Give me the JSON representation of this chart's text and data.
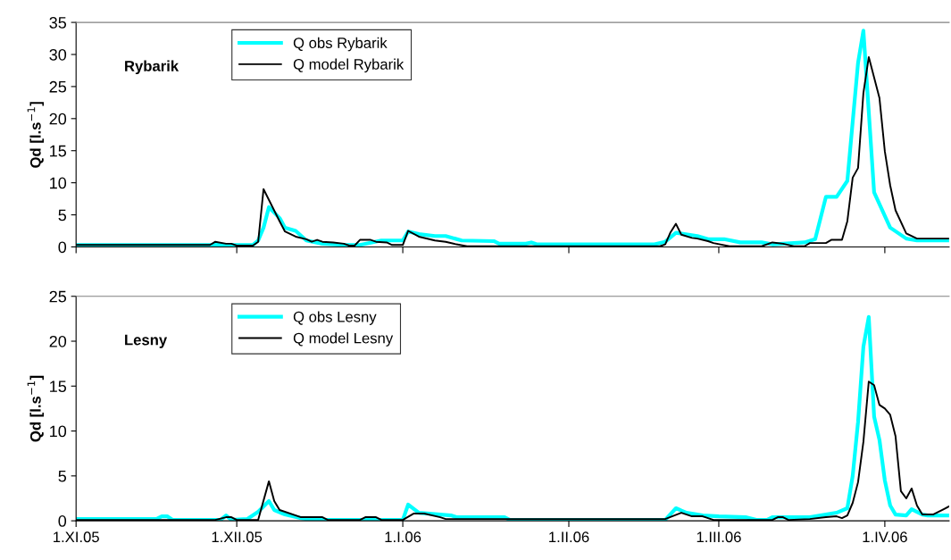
{
  "chart_data": [
    {
      "type": "line",
      "title": "Rybarik",
      "ylabel": "Qd [l.s$^{−1}$]",
      "xlim": [
        "2005-11-01",
        "2006-04-13"
      ],
      "ylim": [
        0,
        35
      ],
      "yticks": [
        0,
        5,
        10,
        15,
        20,
        25,
        30,
        35
      ],
      "xticks": [
        {
          "value": "2005-11-01",
          "label": null
        },
        {
          "value": "2005-12-01",
          "label": null
        },
        {
          "value": "2006-01-01",
          "label": null
        },
        {
          "value": "2006-02-01",
          "label": null
        },
        {
          "value": "2006-03-01",
          "label": null
        },
        {
          "value": "2006-04-01",
          "label": null
        }
      ],
      "tick_labels": "y",
      "grid": false,
      "legend": "top left",
      "marker": "none",
      "line_style": "solid",
      "series": [
        {
          "name": "Q obs Rybarik",
          "color": "#00ffff",
          "x": [
            "2005-11-01",
            "2005-11-26",
            "2005-11-27",
            "2005-11-28",
            "2005-12-04",
            "2005-12-05",
            "2005-12-06",
            "2005-12-07",
            "2005-12-09",
            "2005-12-10",
            "2005-12-12",
            "2005-12-14",
            "2005-12-17",
            "2005-12-21",
            "2005-12-24",
            "2005-12-28",
            "2006-01-01",
            "2006-01-02",
            "2006-01-04",
            "2006-01-07",
            "2006-01-09",
            "2006-01-12",
            "2006-01-18",
            "2006-01-19",
            "2006-01-24",
            "2006-01-25",
            "2006-01-26",
            "2006-02-17",
            "2006-02-19",
            "2006-02-21",
            "2006-02-25",
            "2006-02-27",
            "2006-03-02",
            "2006-03-05",
            "2006-03-09",
            "2006-03-11",
            "2006-03-17",
            "2006-03-19",
            "2006-03-21",
            "2006-03-23",
            "2006-03-25",
            "2006-03-27",
            "2006-03-28",
            "2006-03-30",
            "2006-04-02",
            "2006-04-05",
            "2006-04-07",
            "2006-04-13"
          ],
          "values": [
            0.3,
            0.3,
            0.4,
            0.3,
            0.3,
            1.0,
            3.0,
            6.2,
            4.5,
            3.0,
            2.5,
            1.0,
            0.5,
            0.3,
            0.3,
            1.0,
            1.0,
            2.4,
            2.0,
            1.7,
            1.7,
            1.0,
            0.9,
            0.5,
            0.5,
            0.7,
            0.4,
            0.4,
            0.8,
            2.2,
            1.7,
            1.2,
            1.2,
            0.7,
            0.7,
            0.4,
            0.7,
            1.2,
            7.8,
            7.8,
            10.3,
            28.7,
            33.7,
            8.5,
            3.0,
            1.3,
            1.0,
            1.0
          ]
        },
        {
          "name": "Q model Rybarik",
          "color": "#000000",
          "x": [
            "2005-11-01",
            "2005-11-26",
            "2005-11-27",
            "2005-11-29",
            "2005-11-30",
            "2005-12-01",
            "2005-12-04",
            "2005-12-05",
            "2005-12-06",
            "2005-12-09",
            "2005-12-10",
            "2005-12-12",
            "2005-12-14",
            "2005-12-15",
            "2005-12-16",
            "2005-12-17",
            "2005-12-19",
            "2005-12-21",
            "2005-12-22",
            "2005-12-23",
            "2005-12-24",
            "2005-12-26",
            "2005-12-27",
            "2005-12-29",
            "2005-12-30",
            "2006-01-01",
            "2006-01-02",
            "2006-01-04",
            "2006-01-07",
            "2006-01-09",
            "2006-01-11",
            "2006-01-13",
            "2006-02-18",
            "2006-02-19",
            "2006-02-20",
            "2006-02-21",
            "2006-02-22",
            "2006-02-24",
            "2006-02-25",
            "2006-02-27",
            "2006-02-28",
            "2006-03-03",
            "2006-03-09",
            "2006-03-11",
            "2006-03-13",
            "2006-03-15",
            "2006-03-17",
            "2006-03-18",
            "2006-03-21",
            "2006-03-22",
            "2006-03-24",
            "2006-03-25",
            "2006-03-26",
            "2006-03-27",
            "2006-03-28",
            "2006-03-29",
            "2006-03-31",
            "2006-04-01",
            "2006-04-02",
            "2006-04-03",
            "2006-04-05",
            "2006-04-07",
            "2006-04-13"
          ],
          "values": [
            0.3,
            0.3,
            0.8,
            0.5,
            0.5,
            0.2,
            0.2,
            0.8,
            9.0,
            4.0,
            2.4,
            1.6,
            1.2,
            0.8,
            1.1,
            0.8,
            0.7,
            0.5,
            0.2,
            0.2,
            1.1,
            1.1,
            0.8,
            0.7,
            0.3,
            0.3,
            2.5,
            1.6,
            1.0,
            0.8,
            0.4,
            0.1,
            0.1,
            0.4,
            2.3,
            3.6,
            1.9,
            1.4,
            1.3,
            0.9,
            0.6,
            0.1,
            0.1,
            0.7,
            0.5,
            0.1,
            0.1,
            0.6,
            0.6,
            1.1,
            1.1,
            4.0,
            10.8,
            12.3,
            24.0,
            29.6,
            23.2,
            14.9,
            9.6,
            5.7,
            2.1,
            1.3,
            1.3
          ]
        }
      ]
    },
    {
      "type": "line",
      "title": "Lesny",
      "ylabel": "Qd [l.s$^{−1}$]",
      "xlim": [
        "2005-11-01",
        "2006-04-13"
      ],
      "ylim": [
        0,
        25
      ],
      "yticks": [
        0,
        5,
        10,
        15,
        20,
        25
      ],
      "xticks": [
        {
          "value": "2005-11-01",
          "label": "1.XI.05"
        },
        {
          "value": "2005-12-01",
          "label": "1.XII.05"
        },
        {
          "value": "2006-01-01",
          "label": "1.I.06"
        },
        {
          "value": "2006-02-01",
          "label": "1.II.06"
        },
        {
          "value": "2006-03-01",
          "label": "1.III.06"
        },
        {
          "value": "2006-04-01",
          "label": "1.IV.06"
        }
      ],
      "grid": false,
      "legend": "top left",
      "marker": "none",
      "line_style": "solid",
      "series": [
        {
          "name": "Q obs Lesny",
          "color": "#00ffff",
          "x": [
            "2005-11-01",
            "2005-11-16",
            "2005-11-17",
            "2005-11-18",
            "2005-11-19",
            "2005-11-28",
            "2005-11-29",
            "2005-11-30",
            "2005-12-03",
            "2005-12-04",
            "2005-12-05",
            "2005-12-07",
            "2005-12-08",
            "2005-12-10",
            "2005-12-13",
            "2005-12-15",
            "2006-01-01",
            "2006-01-02",
            "2006-01-04",
            "2006-01-06",
            "2006-01-10",
            "2006-01-11",
            "2006-01-20",
            "2006-01-21",
            "2006-02-19",
            "2006-02-21",
            "2006-02-23",
            "2006-02-26",
            "2006-03-01",
            "2006-03-06",
            "2006-03-08",
            "2006-03-10",
            "2006-03-11",
            "2006-03-18",
            "2006-03-23",
            "2006-03-25",
            "2006-03-26",
            "2006-03-27",
            "2006-03-28",
            "2006-03-29",
            "2006-03-30",
            "2006-03-31",
            "2006-04-01",
            "2006-04-02",
            "2006-04-03",
            "2006-04-05",
            "2006-04-06",
            "2006-04-08",
            "2006-04-09",
            "2006-04-13"
          ],
          "values": [
            0.2,
            0.2,
            0.5,
            0.5,
            0.1,
            0.1,
            0.6,
            0.1,
            0.2,
            0.6,
            1.0,
            2.2,
            1.2,
            0.7,
            0.3,
            0.1,
            0.1,
            1.8,
            0.9,
            0.8,
            0.6,
            0.4,
            0.4,
            0.1,
            0.1,
            1.4,
            0.9,
            0.6,
            0.5,
            0.4,
            0.1,
            0.1,
            0.4,
            0.4,
            0.9,
            1.4,
            5.0,
            11.0,
            19.4,
            22.7,
            11.6,
            9.0,
            4.5,
            1.7,
            0.7,
            0.6,
            1.3,
            0.7,
            0.6,
            0.6
          ]
        },
        {
          "name": "Q model Lesny",
          "color": "#000000",
          "x": [
            "2005-11-01",
            "2005-11-27",
            "2005-11-29",
            "2005-11-30",
            "2005-12-01",
            "2005-12-05",
            "2005-12-07",
            "2005-12-08",
            "2005-12-09",
            "2005-12-13",
            "2005-12-17",
            "2005-12-18",
            "2005-12-24",
            "2005-12-25",
            "2005-12-27",
            "2005-12-28",
            "2006-01-01",
            "2006-01-03",
            "2006-01-05",
            "2006-01-08",
            "2006-01-09",
            "2006-02-19",
            "2006-02-22",
            "2006-02-24",
            "2006-02-26",
            "2006-02-28",
            "2006-03-11",
            "2006-03-12",
            "2006-03-13",
            "2006-03-14",
            "2006-03-18",
            "2006-03-21",
            "2006-03-23",
            "2006-03-24",
            "2006-03-25",
            "2006-03-26",
            "2006-03-27",
            "2006-03-28",
            "2006-03-29",
            "2006-03-30",
            "2006-03-31",
            "2006-04-01",
            "2006-04-02",
            "2006-04-03",
            "2006-04-04",
            "2006-04-05",
            "2006-04-06",
            "2006-04-07",
            "2006-04-08",
            "2006-04-10",
            "2006-04-12",
            "2006-04-13"
          ],
          "values": [
            0.1,
            0.1,
            0.4,
            0.4,
            0.1,
            0.1,
            4.4,
            2.2,
            1.2,
            0.4,
            0.4,
            0.1,
            0.1,
            0.4,
            0.4,
            0.1,
            0.1,
            0.8,
            0.8,
            0.4,
            0.2,
            0.2,
            0.9,
            0.5,
            0.5,
            0.1,
            0.1,
            0.4,
            0.4,
            0.1,
            0.2,
            0.4,
            0.5,
            0.3,
            0.6,
            2.0,
            4.3,
            8.8,
            15.5,
            15.1,
            12.9,
            12.5,
            11.8,
            9.4,
            3.3,
            2.5,
            3.6,
            1.7,
            0.7,
            0.7,
            1.3,
            1.6
          ]
        }
      ]
    }
  ]
}
